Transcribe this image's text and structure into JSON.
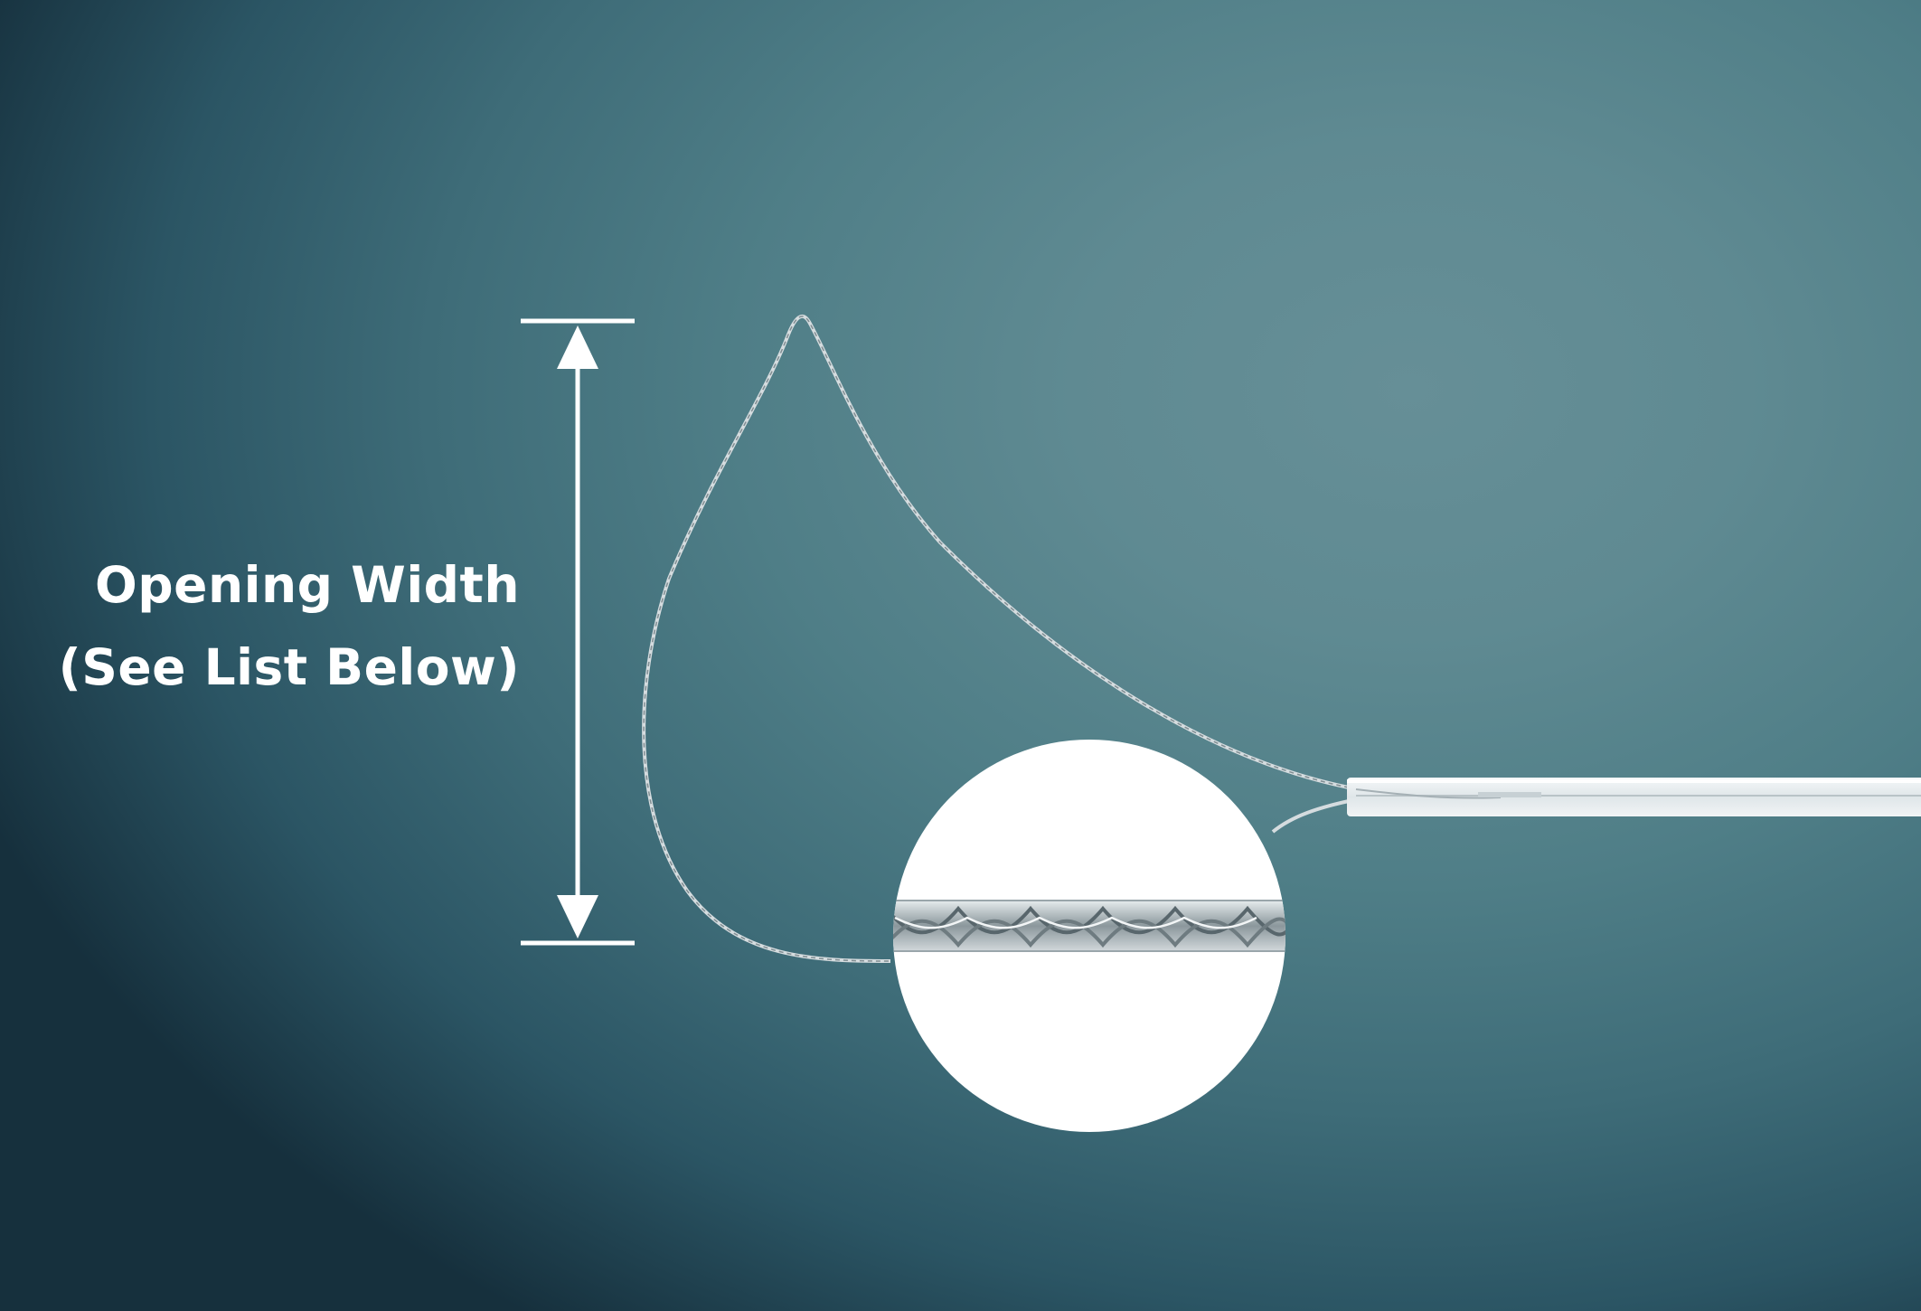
{
  "dimension_label": {
    "line1": "Opening Width",
    "line2": "(See List Below)"
  },
  "colors": {
    "background_light": "#668f97",
    "background_dark": "#16303d",
    "annotation": "#ffffff",
    "wire": "#c8d0d3",
    "sheath": "#e6ecef",
    "magnifier": "#ffffff"
  },
  "icons": {
    "arrow_up": "arrowhead-up-icon",
    "arrow_down": "arrowhead-down-icon"
  }
}
